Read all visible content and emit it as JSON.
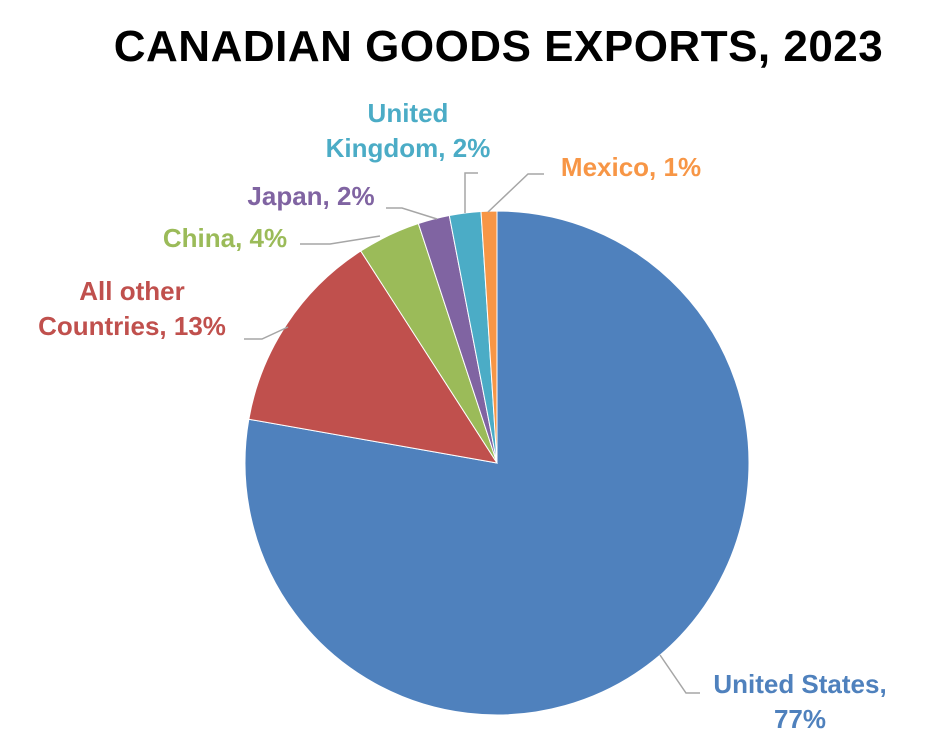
{
  "chart_data": {
    "type": "pie",
    "title": "CANADIAN GOODS EXPORTS, 2023",
    "slices": [
      {
        "label_lines": [
          "United States,",
          "77%"
        ],
        "value": 77,
        "color": "#4F81BD"
      },
      {
        "label_lines": [
          "All other",
          "Countries, 13%"
        ],
        "value": 13,
        "color": "#C0504D"
      },
      {
        "label_lines": [
          "China, 4%"
        ],
        "value": 4,
        "color": "#9BBB59"
      },
      {
        "label_lines": [
          "Japan, 2%"
        ],
        "value": 2,
        "color": "#8064A2"
      },
      {
        "label_lines": [
          "United",
          "Kingdom, 2%"
        ],
        "value": 2,
        "color": "#4BACC6"
      },
      {
        "label_lines": [
          "Mexico, 1%"
        ],
        "value": 1,
        "color": "#F79646"
      }
    ],
    "start_direction": "12 o'clock",
    "order": "clockwise",
    "legend": "none",
    "leader_line_color": "#A6A6A6"
  }
}
